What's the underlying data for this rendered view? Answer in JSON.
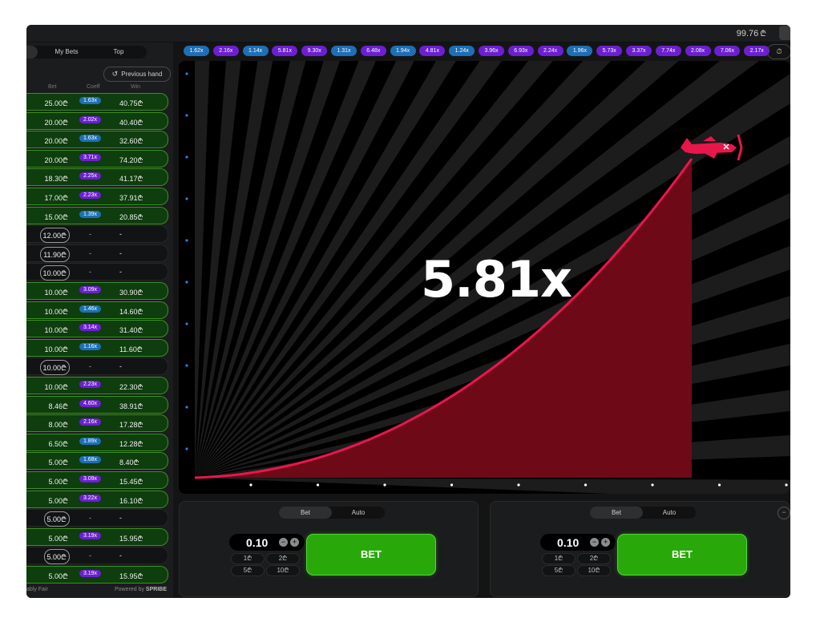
{
  "header": {
    "balance": "99.76",
    "currency": "₾"
  },
  "left_panel": {
    "tabs": [
      "",
      "My Bets",
      "Top"
    ],
    "previous_hand_label": "Previous hand",
    "columns": {
      "bet": "Bet",
      "coeff": "Coeff",
      "win": "Win"
    },
    "rows": [
      {
        "bet": "25.00₾",
        "coeff": "1.63x",
        "win": "40.75₾",
        "won": true,
        "color": "#1d6fb6"
      },
      {
        "bet": "20.00₾",
        "coeff": "2.02x",
        "win": "40.40₾",
        "won": true,
        "color": "#6c1fd2"
      },
      {
        "bet": "20.00₾",
        "coeff": "1.63x",
        "win": "32.60₾",
        "won": true,
        "color": "#1d6fb6"
      },
      {
        "bet": "20.00₾",
        "coeff": "3.71x",
        "win": "74.20₾",
        "won": true,
        "color": "#6c1fd2"
      },
      {
        "bet": "18.30₾",
        "coeff": "2.25x",
        "win": "41.17₾",
        "won": true,
        "color": "#6c1fd2"
      },
      {
        "bet": "17.00₾",
        "coeff": "2.23x",
        "win": "37.91₾",
        "won": true,
        "color": "#6c1fd2"
      },
      {
        "bet": "15.00₾",
        "coeff": "1.39x",
        "win": "20.85₾",
        "won": true,
        "color": "#1d6fb6"
      },
      {
        "bet": "12.00₾",
        "coeff": "-",
        "win": "-",
        "won": false,
        "color": ""
      },
      {
        "bet": "11.90₾",
        "coeff": "-",
        "win": "-",
        "won": false,
        "color": ""
      },
      {
        "bet": "10.00₾",
        "coeff": "-",
        "win": "-",
        "won": false,
        "color": ""
      },
      {
        "bet": "10.00₾",
        "coeff": "3.09x",
        "win": "30.90₾",
        "won": true,
        "color": "#6c1fd2"
      },
      {
        "bet": "10.00₾",
        "coeff": "1.46x",
        "win": "14.60₾",
        "won": true,
        "color": "#1d6fb6"
      },
      {
        "bet": "10.00₾",
        "coeff": "3.14x",
        "win": "31.40₾",
        "won": true,
        "color": "#6c1fd2"
      },
      {
        "bet": "10.00₾",
        "coeff": "1.16x",
        "win": "11.60₾",
        "won": true,
        "color": "#1d6fb6"
      },
      {
        "bet": "10.00₾",
        "coeff": "-",
        "win": "-",
        "won": false,
        "color": ""
      },
      {
        "bet": "10.00₾",
        "coeff": "2.23x",
        "win": "22.30₾",
        "won": true,
        "color": "#6c1fd2"
      },
      {
        "bet": "8.46₾",
        "coeff": "4.60x",
        "win": "38.91₾",
        "won": true,
        "color": "#6c1fd2"
      },
      {
        "bet": "8.00₾",
        "coeff": "2.16x",
        "win": "17.28₾",
        "won": true,
        "color": "#6c1fd2"
      },
      {
        "bet": "6.50₾",
        "coeff": "1.89x",
        "win": "12.28₾",
        "won": true,
        "color": "#1d6fb6"
      },
      {
        "bet": "5.00₾",
        "coeff": "1.68x",
        "win": "8.40₾",
        "won": true,
        "color": "#1d6fb6"
      },
      {
        "bet": "5.00₾",
        "coeff": "3.09x",
        "win": "15.45₾",
        "won": true,
        "color": "#6c1fd2"
      },
      {
        "bet": "5.00₾",
        "coeff": "3.22x",
        "win": "16.10₾",
        "won": true,
        "color": "#6c1fd2"
      },
      {
        "bet": "5.00₾",
        "coeff": "-",
        "win": "-",
        "won": false,
        "color": ""
      },
      {
        "bet": "5.00₾",
        "coeff": "3.19x",
        "win": "15.95₾",
        "won": true,
        "color": "#6c1fd2"
      },
      {
        "bet": "5.00₾",
        "coeff": "-",
        "win": "-",
        "won": false,
        "color": ""
      },
      {
        "bet": "5.00₾",
        "coeff": "3.19x",
        "win": "15.95₾",
        "won": true,
        "color": "#6c1fd2"
      }
    ],
    "footer_left": "ably Fair",
    "footer_powered": "Powered by",
    "footer_brand": "SPRIBE"
  },
  "history": [
    {
      "v": "1.62x",
      "c": "#1d6fb6"
    },
    {
      "v": "2.16x",
      "c": "#6c1fd2"
    },
    {
      "v": "1.14x",
      "c": "#1d6fb6"
    },
    {
      "v": "5.81x",
      "c": "#6c1fd2"
    },
    {
      "v": "9.30x",
      "c": "#6c1fd2"
    },
    {
      "v": "1.31x",
      "c": "#1d6fb6"
    },
    {
      "v": "6.48x",
      "c": "#6c1fd2"
    },
    {
      "v": "1.94x",
      "c": "#1d6fb6"
    },
    {
      "v": "4.81x",
      "c": "#6c1fd2"
    },
    {
      "v": "1.24x",
      "c": "#1d6fb6"
    },
    {
      "v": "3.96x",
      "c": "#6c1fd2"
    },
    {
      "v": "6.93x",
      "c": "#6c1fd2"
    },
    {
      "v": "2.24x",
      "c": "#6c1fd2"
    },
    {
      "v": "1.96x",
      "c": "#1d6fb6"
    },
    {
      "v": "5.73x",
      "c": "#6c1fd2"
    },
    {
      "v": "3.37x",
      "c": "#6c1fd2"
    },
    {
      "v": "7.74x",
      "c": "#6c1fd2"
    },
    {
      "v": "2.08x",
      "c": "#6c1fd2"
    },
    {
      "v": "7.06x",
      "c": "#6c1fd2"
    },
    {
      "v": "2.17x",
      "c": "#6c1fd2"
    }
  ],
  "game": {
    "multiplier": "5.81x",
    "curve_color": "#e8174b",
    "plane_color": "#e8174b"
  },
  "bet_panels": [
    {
      "tabs": [
        "Bet",
        "Auto"
      ],
      "stake": "0.10",
      "minus": "−",
      "plus": "+",
      "quick": [
        "1₾",
        "2₾",
        "5₾",
        "10₾"
      ],
      "button": "BET"
    },
    {
      "tabs": [
        "Bet",
        "Auto"
      ],
      "stake": "0.10",
      "minus": "−",
      "plus": "+",
      "quick": [
        "1₾",
        "2₾",
        "5₾",
        "10₾"
      ],
      "button": "BET",
      "more": "−"
    }
  ],
  "colors": {
    "accent_green": "#28a909",
    "blue_chip": "#1d6fb6",
    "purple_chip": "#6c1fd2"
  }
}
